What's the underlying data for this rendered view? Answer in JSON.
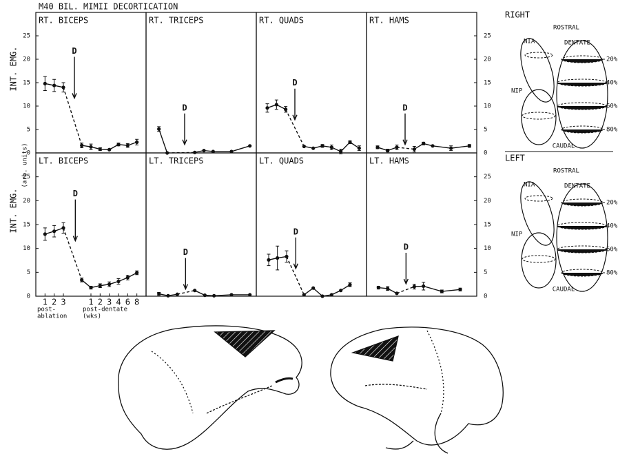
{
  "title": "M40 BIL. MIMII DECORTICATION",
  "y_units": "(arb. units)",
  "chart_data": [
    {
      "type": "line",
      "title": "RT. BICEPS",
      "ylabel": "INT. EMG.",
      "xlim": [
        0,
        12
      ],
      "ylim": [
        0,
        30
      ],
      "yticks": [
        0,
        5,
        10,
        15,
        20,
        25
      ],
      "color": "#111111",
      "x": [
        1,
        2,
        3,
        5,
        6,
        7,
        8,
        9,
        10,
        11
      ],
      "values": [
        14.8,
        14.4,
        14.0,
        1.6,
        1.3,
        0.8,
        0.7,
        1.8,
        1.6,
        2.3
      ],
      "errors": [
        1.5,
        1.3,
        1.0,
        0.5,
        0.6,
        0.3,
        null,
        0.3,
        0.4,
        0.6
      ],
      "annotation": "D",
      "annotation_x": 4.2,
      "annotation_y": 11.7
    },
    {
      "type": "line",
      "title": "RT. TRICEPS",
      "xlim": [
        0,
        12
      ],
      "ylim": [
        0,
        30
      ],
      "color": "#111111",
      "x": [
        1.4,
        2.3,
        5.3,
        6.3,
        7.3,
        9.3,
        11.3
      ],
      "values": [
        5.1,
        0,
        0.1,
        0.5,
        0.3,
        0.3,
        1.5
      ],
      "errors": [
        0.5,
        null,
        null,
        null,
        null,
        null,
        null
      ],
      "annotation": "D",
      "annotation_x": 4.2,
      "annotation_y": 1.8
    },
    {
      "type": "line",
      "title": "RT. QUADS",
      "xlim": [
        0,
        12
      ],
      "ylim": [
        0,
        30
      ],
      "color": "#111111",
      "x": [
        1.2,
        2.2,
        3.2,
        5.2,
        6.2,
        7.2,
        8.2,
        9.2,
        10.2,
        11.2
      ],
      "values": [
        9.6,
        10.3,
        9.3,
        1.4,
        1.0,
        1.5,
        1.2,
        0.3,
        2.3,
        1.0
      ],
      "errors": [
        0.9,
        1.0,
        0.6,
        null,
        null,
        0.3,
        0.5,
        0.5,
        0.3,
        0.5
      ],
      "annotation": "D",
      "annotation_x": 4.2,
      "annotation_y": 7.1
    },
    {
      "type": "line",
      "title": "RT. HAMS",
      "xlim": [
        0,
        12
      ],
      "ylim": [
        0,
        30
      ],
      "yticks": [
        0,
        5,
        10,
        15,
        20,
        25
      ],
      "color": "#111111",
      "x": [
        1.2,
        2.3,
        3.3,
        5.2,
        6.2,
        7.2,
        9.2,
        11.2
      ],
      "values": [
        1.2,
        0.5,
        1.2,
        0.8,
        2.0,
        1.5,
        1.0,
        1.5
      ],
      "errors": [
        0.3,
        0.3,
        0.5,
        0.6,
        0.3,
        null,
        0.5,
        0.3
      ],
      "annotation": "D",
      "annotation_x": 4.2,
      "annotation_y": 1.8
    },
    {
      "type": "line",
      "title": "LT. BICEPS",
      "ylabel": "INT. EMG.",
      "xlim": [
        0,
        12
      ],
      "ylim": [
        0,
        30
      ],
      "yticks": [
        0,
        5,
        10,
        15,
        20,
        25
      ],
      "color": "#111111",
      "x": [
        1,
        2,
        3,
        5,
        6,
        7,
        8,
        9,
        10,
        11
      ],
      "values": [
        13.0,
        13.6,
        14.3,
        3.4,
        1.8,
        2.2,
        2.5,
        3.1,
        3.9,
        4.9
      ],
      "errors": [
        1.3,
        1.2,
        1.1,
        0.4,
        0.3,
        0.4,
        0.5,
        0.6,
        0.5,
        0.4
      ],
      "xticks": [
        {
          "value": 1,
          "label": "1"
        },
        {
          "value": 2,
          "label": "2"
        },
        {
          "value": 3,
          "label": "3"
        },
        {
          "value": 6,
          "label": "1"
        },
        {
          "value": 7,
          "label": "2"
        },
        {
          "value": 8,
          "label": "3"
        },
        {
          "value": 9,
          "label": "4"
        },
        {
          "value": 10,
          "label": "6"
        },
        {
          "value": 11,
          "label": "8"
        }
      ],
      "x_group_labels": [
        [
          "post-",
          "ablation"
        ],
        [
          "post-dentate",
          "(wks)"
        ]
      ],
      "annotation": "D",
      "annotation_x": 4.3,
      "annotation_y": 11.6
    },
    {
      "type": "line",
      "title": "LT. TRICEPS",
      "xlim": [
        0,
        12
      ],
      "ylim": [
        0,
        30
      ],
      "color": "#111111",
      "x": [
        1.4,
        2.4,
        3.4,
        5.3,
        6.4,
        7.4,
        9.3,
        11.3
      ],
      "values": [
        0.5,
        0.1,
        0.4,
        1.2,
        0.2,
        0.1,
        0.3,
        0.3
      ],
      "errors": [
        0.3,
        null,
        null,
        null,
        null,
        null,
        null,
        null
      ],
      "annotation": "D",
      "annotation_x": 4.3,
      "annotation_y": 1.5
    },
    {
      "type": "line",
      "title": "LT. QUADS",
      "xlim": [
        0,
        12
      ],
      "ylim": [
        0,
        30
      ],
      "color": "#111111",
      "x": [
        1.35,
        2.3,
        3.3,
        5.2,
        6.2,
        7.2,
        8.2,
        9.2,
        10.2
      ],
      "values": [
        7.6,
        8.0,
        8.3,
        0.3,
        1.7,
        0.0,
        0.3,
        1.2,
        2.4
      ],
      "errors": [
        1.2,
        2.5,
        1.2,
        null,
        null,
        null,
        null,
        null,
        0.4
      ],
      "annotation": "D",
      "annotation_x": 4.3,
      "annotation_y": 5.8
    },
    {
      "type": "line",
      "title": "LT. HAMS",
      "xlim": [
        0,
        12
      ],
      "ylim": [
        0,
        30
      ],
      "yticks": [
        0,
        5,
        10,
        15,
        20,
        25
      ],
      "color": "#111111",
      "x": [
        1.3,
        2.3,
        3.3,
        5.2,
        6.2,
        8.2,
        10.2
      ],
      "values": [
        1.8,
        1.6,
        0.6,
        2.0,
        2.1,
        1.0,
        1.4
      ],
      "errors": [
        0.3,
        0.4,
        null,
        0.5,
        0.8,
        0.3,
        0.3
      ],
      "annotation": "D",
      "annotation_x": 4.3,
      "annotation_y": 2.6
    }
  ],
  "diagrams": [
    {
      "title": "RIGHT",
      "rostral": "ROSTRAL",
      "caudal": "CAUDAL",
      "nia": "NIA",
      "nip": "NIP",
      "dentate": "DENTATE",
      "levels": [
        "20%",
        "40%",
        "60%",
        "80%"
      ]
    },
    {
      "title": "LEFT",
      "rostral": "ROSTRAL",
      "caudal": "CAUDAL",
      "nia": "NIA",
      "nip": "NIP",
      "dentate": "DENTATE",
      "levels": [
        "20%",
        "40%",
        "60%",
        "80%"
      ]
    }
  ]
}
